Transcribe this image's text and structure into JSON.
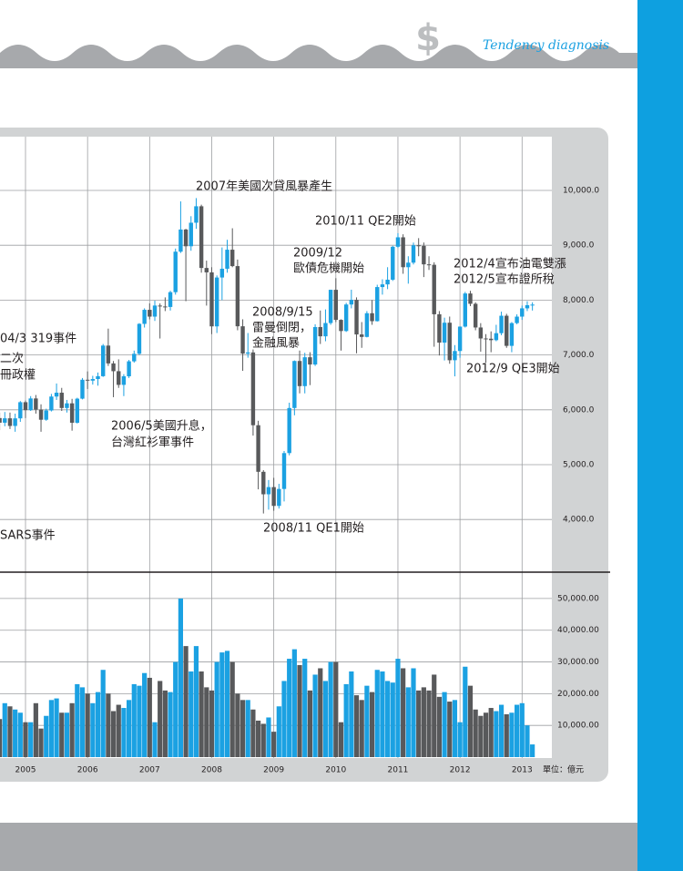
{
  "header": {
    "title": "Tendency diagnosis"
  },
  "chart_data": [
    {
      "type": "candlestick",
      "categories": [
        null,
        null,
        null,
        null,
        null,
        "2005",
        null,
        null,
        null,
        null,
        null,
        null,
        null,
        null,
        null,
        null,
        null,
        "2006",
        null,
        null,
        null,
        null,
        null,
        null,
        null,
        null,
        null,
        null,
        null,
        "2007",
        null,
        null,
        null,
        null,
        null,
        null,
        null,
        null,
        null,
        null,
        null,
        "2008",
        null,
        null,
        null,
        null,
        null,
        null,
        null,
        null,
        null,
        null,
        null,
        "2009",
        null,
        null,
        null,
        null,
        null,
        null,
        null,
        null,
        null,
        null,
        null,
        "2010",
        null,
        null,
        null,
        null,
        null,
        null,
        null,
        null,
        null,
        null,
        null,
        "2011",
        null,
        null,
        null,
        null,
        null,
        null,
        null,
        null,
        null,
        null,
        null,
        "2012",
        null,
        null,
        null,
        null,
        null,
        null,
        null,
        null,
        null,
        null,
        null,
        "2013",
        null,
        null
      ],
      "open": [
        5850,
        5765,
        5845,
        5706,
        5844,
        6139,
        5994,
        6207,
        6005,
        5819,
        5988,
        6242,
        6312,
        6033,
        6118,
        5764,
        6203,
        6548,
        6532,
        6561,
        6613,
        7171,
        6846,
        6704,
        6455,
        6611,
        6884,
        7021,
        7567,
        7823,
        7699,
        7901,
        7884,
        7875,
        8145,
        8883,
        9287,
        8982,
        9411,
        9711,
        8586,
        8506,
        7521,
        8412,
        8572,
        8919,
        8620,
        7523,
        7024,
        7046,
        5719,
        4870,
        4460,
        4591,
        4248,
        4557,
        5211,
        6033,
        6890,
        6432,
        6958,
        6826,
        7509,
        7340,
        7582,
        8188,
        7640,
        7436,
        7920,
        8004,
        7374,
        7329,
        7761,
        7616,
        8238,
        8287,
        8372,
        8973,
        9145,
        8600,
        8683,
        8999,
        8989,
        8652,
        8644,
        7742,
        7225,
        7588,
        6904,
        7072,
        7517,
        8121,
        7933,
        7501,
        7301,
        7296,
        7270,
        7397,
        7715,
        7166,
        7581,
        7699,
        7850,
        7907
      ],
      "high": [
        5950,
        5960,
        5950,
        5930,
        6160,
        6170,
        6250,
        6270,
        6100,
        6020,
        6290,
        6480,
        6400,
        6180,
        6200,
        6220,
        6580,
        6700,
        6620,
        6680,
        7200,
        7480,
        6890,
        6920,
        6650,
        6910,
        7080,
        7580,
        7850,
        7940,
        7990,
        7940,
        8050,
        8170,
        8940,
        9800,
        9300,
        9530,
        9860,
        9740,
        8720,
        8600,
        8450,
        8960,
        9100,
        9310,
        8740,
        7650,
        7400,
        7100,
        5800,
        4900,
        4720,
        4760,
        4650,
        5250,
        6130,
        6900,
        7080,
        7040,
        7050,
        7560,
        7810,
        7830,
        8190,
        8400,
        7650,
        7950,
        8190,
        8050,
        7600,
        7800,
        8000,
        8280,
        8380,
        8600,
        8990,
        9220,
        9200,
        8800,
        9050,
        9130,
        9050,
        8800,
        8690,
        7800,
        7680,
        7700,
        7180,
        7520,
        8150,
        8170,
        7960,
        7580,
        7380,
        7430,
        7550,
        7790,
        7750,
        7600,
        7740,
        7900,
        7980,
        7960
      ],
      "low": [
        5630,
        5700,
        5650,
        5600,
        5780,
        5850,
        5980,
        5930,
        5600,
        5800,
        5970,
        6180,
        5980,
        5950,
        5620,
        5750,
        6190,
        6380,
        6460,
        6440,
        6600,
        6800,
        6230,
        6400,
        6250,
        6580,
        6860,
        7000,
        7500,
        7650,
        7620,
        7300,
        7800,
        7810,
        8100,
        8860,
        7980,
        8900,
        9300,
        8500,
        7900,
        7380,
        7400,
        8000,
        8500,
        8600,
        7450,
        6710,
        6950,
        5530,
        4550,
        4110,
        4180,
        4160,
        4200,
        4330,
        5170,
        5900,
        6300,
        6300,
        6450,
        6800,
        7200,
        7250,
        7550,
        7600,
        7080,
        7420,
        7850,
        7030,
        7130,
        7320,
        7550,
        7610,
        8100,
        8200,
        8350,
        8950,
        8480,
        8300,
        8650,
        8800,
        8420,
        8550,
        7150,
        6990,
        6900,
        6840,
        6610,
        6950,
        7500,
        7890,
        7450,
        7060,
        6860,
        7050,
        7250,
        7360,
        7130,
        7050,
        7560,
        7640,
        7800,
        7810
      ],
      "close": [
        5765,
        5845,
        5706,
        5844,
        6139,
        5994,
        6207,
        6005,
        5819,
        5988,
        6242,
        6312,
        6033,
        6118,
        5764,
        6203,
        6548,
        6532,
        6561,
        6613,
        7171,
        6846,
        6704,
        6455,
        6611,
        6884,
        7021,
        7567,
        7823,
        7699,
        7901,
        7884,
        7875,
        8145,
        8883,
        9287,
        8982,
        9411,
        9711,
        8586,
        8506,
        7521,
        8412,
        8572,
        8919,
        8620,
        7523,
        7024,
        7046,
        5719,
        4870,
        4460,
        4591,
        4248,
        4557,
        5211,
        6033,
        6890,
        6432,
        6958,
        6826,
        7509,
        7340,
        7582,
        8188,
        7640,
        7436,
        7920,
        8004,
        7374,
        7329,
        7761,
        7616,
        8238,
        8287,
        8372,
        8973,
        9145,
        8600,
        8683,
        8999,
        8989,
        8652,
        8644,
        7742,
        7225,
        7588,
        6904,
        7072,
        7517,
        8121,
        7933,
        7501,
        7301,
        7296,
        7270,
        7397,
        7715,
        7166,
        7581,
        7699,
        7850,
        7907,
        7918
      ],
      "up_color": "#1ba1e2",
      "down_color": "#58595b",
      "ylim": [
        3040,
        10980
      ],
      "yticks": [
        {
          "value": 4000,
          "label": "4,000.0"
        },
        {
          "value": 5000,
          "label": "5,000.0"
        },
        {
          "value": 6000,
          "label": "6,000.0"
        },
        {
          "value": 7000,
          "label": "7,000.0"
        },
        {
          "value": 8000,
          "label": "8,000.0"
        },
        {
          "value": 9000,
          "label": "9,000.0"
        },
        {
          "value": 10000,
          "label": "10,000.0"
        }
      ],
      "grid": true,
      "annotations": [
        [
          "2007年美國次貸風暴產生"
        ],
        [
          "2010/11 QE2開始"
        ],
        [
          "2009/12",
          "歐債危機開始"
        ],
        [
          "2012/4宣布油電雙漲",
          "2012/5宣布證所稅"
        ],
        [
          "2008/9/15",
          "雷曼倒閉，",
          "金融風暴"
        ],
        [
          "04/3 319事件"
        ],
        [
          "二次",
          "冊政權"
        ],
        [
          "2012/9 QE3開始"
        ],
        [
          "2006/5美國升息，",
          "台灣紅衫軍事件"
        ],
        [
          "2008/11 QE1開始"
        ],
        [
          "SARS事件"
        ]
      ]
    },
    {
      "type": "bar",
      "values": [
        12000,
        17000,
        16000,
        15000,
        14000,
        11000,
        11000,
        17000,
        9000,
        13000,
        18000,
        18500,
        14000,
        14000,
        17000,
        23000,
        22000,
        20000,
        17000,
        20500,
        27500,
        20000,
        14500,
        16500,
        15500,
        18000,
        23000,
        22500,
        26500,
        25000,
        11000,
        24000,
        21000,
        20500,
        30000,
        50000,
        35000,
        27000,
        35000,
        27000,
        22000,
        21000,
        30000,
        33000,
        33500,
        30000,
        20000,
        18000,
        18000,
        15000,
        11500,
        10500,
        12500,
        8000,
        16000,
        24000,
        31000,
        34000,
        29000,
        31000,
        21000,
        26000,
        28000,
        24000,
        30000,
        30000,
        11000,
        23000,
        27000,
        19500,
        18000,
        22500,
        20500,
        27500,
        27000,
        24000,
        23500,
        31000,
        28000,
        22000,
        28000,
        21000,
        22000,
        21000,
        26000,
        19000,
        20500,
        17500,
        18000,
        11000,
        28500,
        22500,
        15000,
        13000,
        14000,
        15500,
        14500,
        16500,
        13500,
        14000,
        16500,
        17000,
        10000,
        4000
      ],
      "ylim": [
        0,
        58300
      ],
      "yticks": [
        {
          "value": 10000,
          "label": "10,000.00"
        },
        {
          "value": 20000,
          "label": "20,000.00"
        },
        {
          "value": 30000,
          "label": "30,000.00"
        },
        {
          "value": 40000,
          "label": "40,000.00"
        },
        {
          "value": 50000,
          "label": "50,000.00"
        }
      ],
      "grid": true,
      "unit_label": "單位：億元"
    }
  ]
}
